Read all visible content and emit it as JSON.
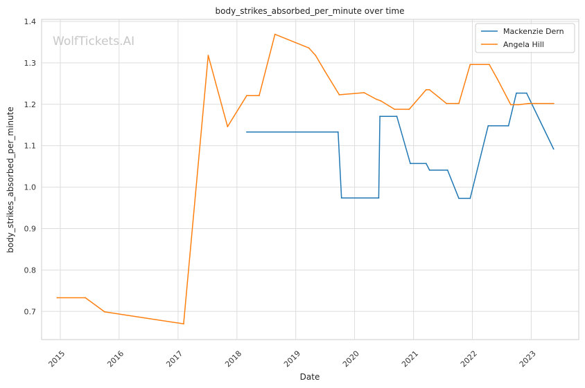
{
  "chart_data": {
    "type": "line",
    "title": "body_strikes_absorbed_per_minute over time",
    "xlabel": "Date",
    "ylabel": "body_strikes_absorbed_per_minute",
    "watermark": "WolfTickets.AI",
    "x_type": "date",
    "xlim": [
      "2014-09-07",
      "2023-10-23"
    ],
    "ylim": [
      0.632,
      1.405
    ],
    "x_ticks": [
      "2015",
      "2016",
      "2017",
      "2018",
      "2019",
      "2020",
      "2021",
      "2022",
      "2023"
    ],
    "y_ticks": [
      "0.7",
      "0.8",
      "0.9",
      "1.0",
      "1.1",
      "1.2",
      "1.3",
      "1.4"
    ],
    "grid": true,
    "legend_position": "top-right",
    "series": [
      {
        "name": "Mackenzie Dern",
        "color": "#1f77b4",
        "points": [
          [
            "2018-03-03",
            1.133
          ],
          [
            "2019-09-21",
            1.133
          ],
          [
            "2019-10-12",
            0.974
          ],
          [
            "2020-05-30",
            0.974
          ],
          [
            "2020-06-06",
            1.171
          ],
          [
            "2020-09-19",
            1.171
          ],
          [
            "2020-12-12",
            1.057
          ],
          [
            "2021-03-20",
            1.057
          ],
          [
            "2021-04-10",
            1.041
          ],
          [
            "2021-07-31",
            1.041
          ],
          [
            "2021-10-09",
            0.973
          ],
          [
            "2021-12-18",
            0.973
          ],
          [
            "2022-04-09",
            1.148
          ],
          [
            "2022-08-13",
            1.148
          ],
          [
            "2022-10-01",
            1.227
          ],
          [
            "2022-12-03",
            1.227
          ],
          [
            "2023-05-20",
            1.092
          ]
        ]
      },
      {
        "name": "Angela Hill",
        "color": "#ff7f0e",
        "points": [
          [
            "2014-12-12",
            0.733
          ],
          [
            "2015-06-06",
            0.733
          ],
          [
            "2015-10-03",
            0.699
          ],
          [
            "2017-02-04",
            0.67
          ],
          [
            "2017-07-07",
            1.318
          ],
          [
            "2017-11-04",
            1.146
          ],
          [
            "2018-03-03",
            1.221
          ],
          [
            "2018-05-19",
            1.221
          ],
          [
            "2018-08-25",
            1.369
          ],
          [
            "2019-03-23",
            1.336
          ],
          [
            "2019-05-04",
            1.318
          ],
          [
            "2019-06-29",
            1.281
          ],
          [
            "2019-09-28",
            1.223
          ],
          [
            "2020-02-29",
            1.228
          ],
          [
            "2020-05-16",
            1.212
          ],
          [
            "2020-06-13",
            1.208
          ],
          [
            "2020-09-05",
            1.188
          ],
          [
            "2020-12-05",
            1.188
          ],
          [
            "2021-03-20",
            1.235
          ],
          [
            "2021-04-10",
            1.235
          ],
          [
            "2021-07-24",
            1.202
          ],
          [
            "2021-10-09",
            1.202
          ],
          [
            "2021-12-18",
            1.296
          ],
          [
            "2022-04-16",
            1.296
          ],
          [
            "2022-06-04",
            1.262
          ],
          [
            "2022-08-27",
            1.199
          ],
          [
            "2022-10-15",
            1.199
          ],
          [
            "2022-12-17",
            1.202
          ],
          [
            "2023-05-20",
            1.202
          ]
        ]
      }
    ]
  }
}
